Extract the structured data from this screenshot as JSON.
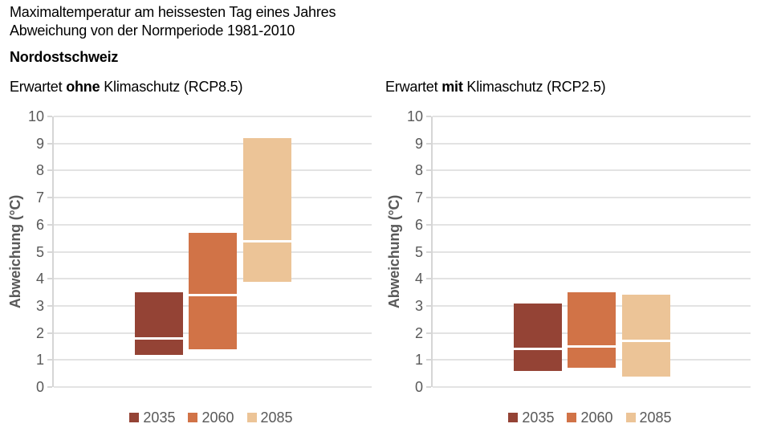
{
  "header": {
    "title_line1": "Maximaltemperatur am heissesten Tag eines Jahres",
    "title_line2": "Abweichung von der Normperiode 1981-2010",
    "region": "Nordostschweiz"
  },
  "colors": {
    "bar_2035": "#944335",
    "bar_2060": "#d17347",
    "bar_2085": "#ecc497",
    "median_line": "#ffffff",
    "gridline": "#e3e3e3",
    "axis_line": "#d6d6d6",
    "axis_text": "#595959",
    "title_text": "#000000"
  },
  "chart_data": [
    {
      "type": "range-bar",
      "title_prefix": "Erwartet ",
      "title_bold": "ohne",
      "title_suffix": " Klimaschutz (RCP8.5)",
      "ylabel": "Abweichung (°C)",
      "ylim": [
        0,
        10
      ],
      "ytick_step": 1,
      "yticks": [
        0,
        1,
        2,
        3,
        4,
        5,
        6,
        7,
        8,
        9,
        10
      ],
      "grid": true,
      "legend_position": "bottom",
      "categories": [
        "2035",
        "2060",
        "2085"
      ],
      "series": [
        {
          "name": "2035",
          "low": 1.2,
          "median": 1.8,
          "high": 3.5,
          "color": "#944335"
        },
        {
          "name": "2060",
          "low": 1.4,
          "median": 3.4,
          "high": 5.7,
          "color": "#d17347"
        },
        {
          "name": "2085",
          "low": 3.9,
          "median": 5.4,
          "high": 9.2,
          "color": "#ecc497"
        }
      ]
    },
    {
      "type": "range-bar",
      "title_prefix": "Erwartet ",
      "title_bold": "mit",
      "title_suffix": " Klimaschutz (RCP2.5)",
      "ylabel": "Abweichung (°C)",
      "ylim": [
        0,
        10
      ],
      "ytick_step": 1,
      "yticks": [
        0,
        1,
        2,
        3,
        4,
        5,
        6,
        7,
        8,
        9,
        10
      ],
      "grid": true,
      "legend_position": "bottom",
      "categories": [
        "2035",
        "2060",
        "2085"
      ],
      "series": [
        {
          "name": "2035",
          "low": 0.6,
          "median": 1.4,
          "high": 3.1,
          "color": "#944335"
        },
        {
          "name": "2060",
          "low": 0.7,
          "median": 1.5,
          "high": 3.5,
          "color": "#d17347"
        },
        {
          "name": "2085",
          "low": 0.4,
          "median": 1.7,
          "high": 3.4,
          "color": "#ecc497"
        }
      ]
    }
  ]
}
